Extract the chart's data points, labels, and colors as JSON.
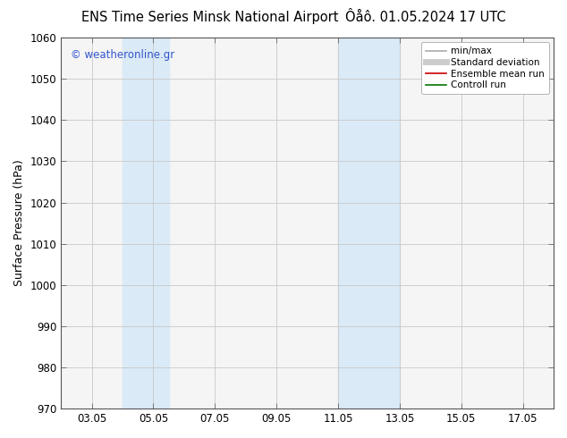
{
  "title_left": "ENS Time Series Minsk National Airport",
  "title_right": "Ôåô. 01.05.2024 17 UTC",
  "ylabel": "Surface Pressure (hPa)",
  "ylim": [
    970,
    1060
  ],
  "yticks": [
    970,
    980,
    990,
    1000,
    1010,
    1020,
    1030,
    1040,
    1050,
    1060
  ],
  "xtick_labels": [
    "03.05",
    "05.05",
    "07.05",
    "09.05",
    "11.05",
    "13.05",
    "15.05",
    "17.05"
  ],
  "xtick_values": [
    3,
    5,
    7,
    9,
    11,
    13,
    15,
    17
  ],
  "xlim": [
    2,
    18
  ],
  "shaded_regions": [
    {
      "xstart": 4.0,
      "xend": 5.5
    },
    {
      "xstart": 11.0,
      "xend": 13.0
    }
  ],
  "shaded_color": "#daeaf7",
  "background_color": "#ffffff",
  "plot_bg_color": "#f5f5f5",
  "grid_color": "#c8c8c8",
  "watermark_text": "© weatheronline.gr",
  "watermark_color": "#3355cc",
  "legend_entries": [
    {
      "label": "min/max",
      "color": "#aaaaaa",
      "linestyle": "-",
      "linewidth": 1.2
    },
    {
      "label": "Standard deviation",
      "color": "#cccccc",
      "linestyle": "-",
      "linewidth": 5
    },
    {
      "label": "Ensemble mean run",
      "color": "#cc0000",
      "linestyle": "-",
      "linewidth": 1.2
    },
    {
      "label": "Controll run",
      "color": "#007700",
      "linestyle": "-",
      "linewidth": 1.2
    }
  ],
  "tick_fontsize": 8.5,
  "label_fontsize": 9,
  "title_fontsize": 10.5
}
